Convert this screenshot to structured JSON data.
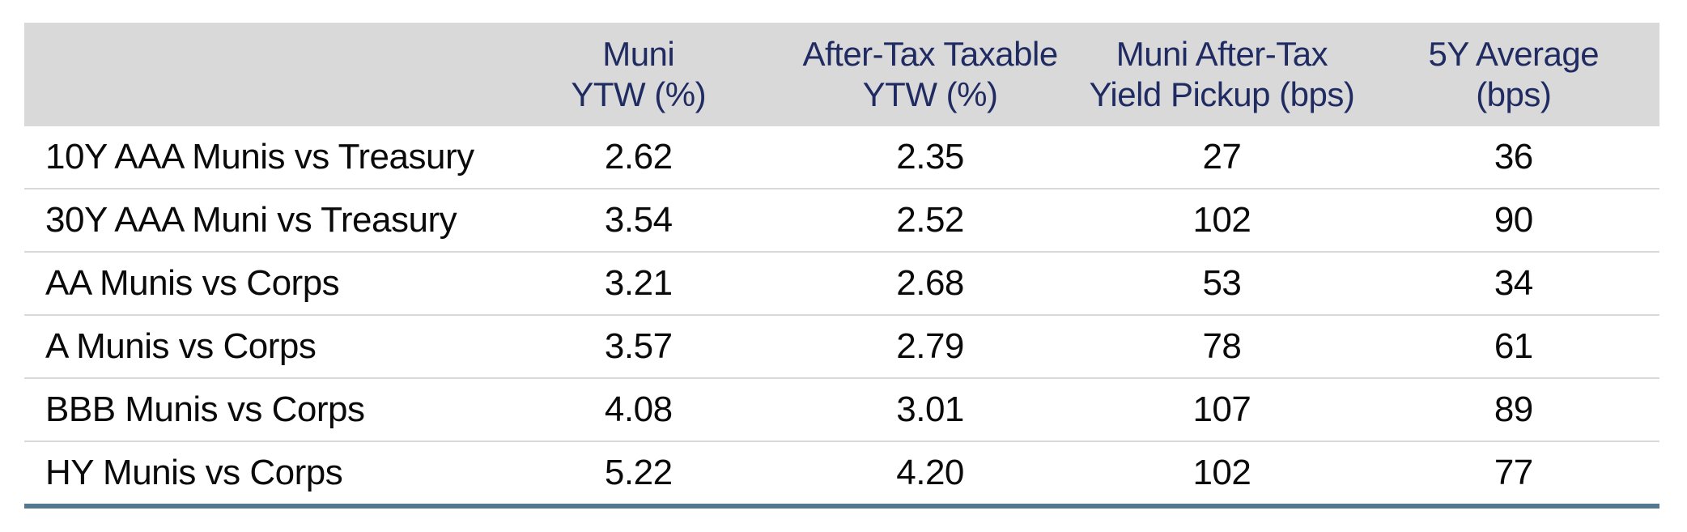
{
  "table": {
    "header": [
      {
        "line1": "",
        "line2": ""
      },
      {
        "line1": "Muni",
        "line2": "YTW (%)"
      },
      {
        "line1": "After-Tax Taxable",
        "line2": "YTW (%)"
      },
      {
        "line1": "Muni After-Tax",
        "line2": "Yield Pickup (bps)"
      },
      {
        "line1": "5Y Average",
        "line2": "(bps)"
      }
    ],
    "rows": [
      {
        "cells": [
          "10Y AAA Munis vs Treasury",
          "2.62",
          "2.35",
          "27",
          "36"
        ]
      },
      {
        "cells": [
          "30Y AAA Muni vs Treasury",
          "3.54",
          "2.52",
          "102",
          "90"
        ]
      },
      {
        "cells": [
          "AA Munis vs Corps",
          "3.21",
          "2.68",
          "53",
          "34"
        ]
      },
      {
        "cells": [
          "A Munis vs Corps",
          "3.57",
          "2.79",
          "78",
          "61"
        ]
      },
      {
        "cells": [
          "BBB Munis vs Corps",
          "4.08",
          "3.01",
          "107",
          "89"
        ]
      },
      {
        "cells": [
          "HY Munis vs Corps",
          "5.22",
          "4.20",
          "102",
          "77"
        ]
      }
    ]
  },
  "colors": {
    "header_background": "#d9d9d9",
    "header_text": "#202b62",
    "body_text": "#0a0a0a",
    "row_separator": "#d9d9d9",
    "bottom_rule": "#54788f"
  },
  "chart_data": {
    "type": "table",
    "columns": [
      "",
      "Muni YTW (%)",
      "After-Tax Taxable YTW (%)",
      "Muni After-Tax Yield Pickup (bps)",
      "5Y Average (bps)"
    ],
    "rows": [
      [
        "10Y AAA Munis vs Treasury",
        2.62,
        2.35,
        27,
        36
      ],
      [
        "30Y AAA Muni vs Treasury",
        3.54,
        2.52,
        102,
        90
      ],
      [
        "AA Munis vs Corps",
        3.21,
        2.68,
        53,
        34
      ],
      [
        "A Munis vs Corps",
        3.57,
        2.79,
        78,
        61
      ],
      [
        "BBB Munis vs Corps",
        4.08,
        3.01,
        107,
        89
      ],
      [
        "HY Munis vs Corps",
        5.22,
        4.2,
        102,
        77
      ]
    ]
  }
}
